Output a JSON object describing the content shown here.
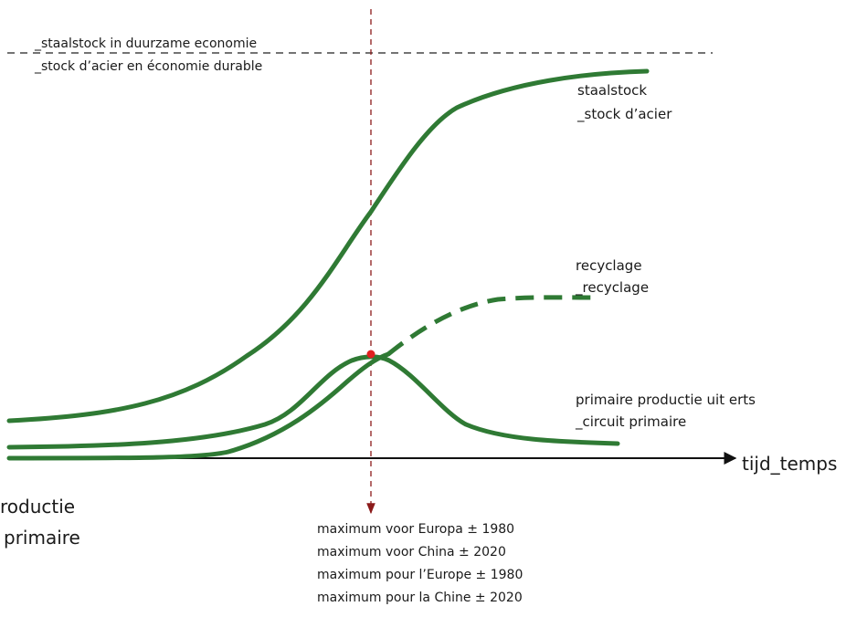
{
  "labels": {
    "sustainable_line_nl": "_staalstock in duurzame economie",
    "sustainable_line_fr": "_stock d’acier en économie durable",
    "stock_nl": "staalstock",
    "stock_fr": "_stock d’acier",
    "recycling_nl": "recyclage",
    "recycling_fr": "_recyclage",
    "primary_nl": "primaire productie uit erts",
    "primary_fr": "_circuit primaire",
    "time_axis": "tijd_temps",
    "left_cut_1": "roductie",
    "left_cut_2": "primaire",
    "max_europa_nl": "maximum voor Europa ± 1980",
    "max_china_nl": "maximum voor China ± 2020",
    "max_europe_fr": "maximum pour l’Europe ± 1980",
    "max_chine_fr": "maximum pour la Chine ± 2020"
  },
  "colors": {
    "curve": "#2f7a34",
    "axis": "#111111",
    "peak_line": "#8b1a1a",
    "peak_dot": "#e02020",
    "dashed_ref": "#222222"
  }
}
